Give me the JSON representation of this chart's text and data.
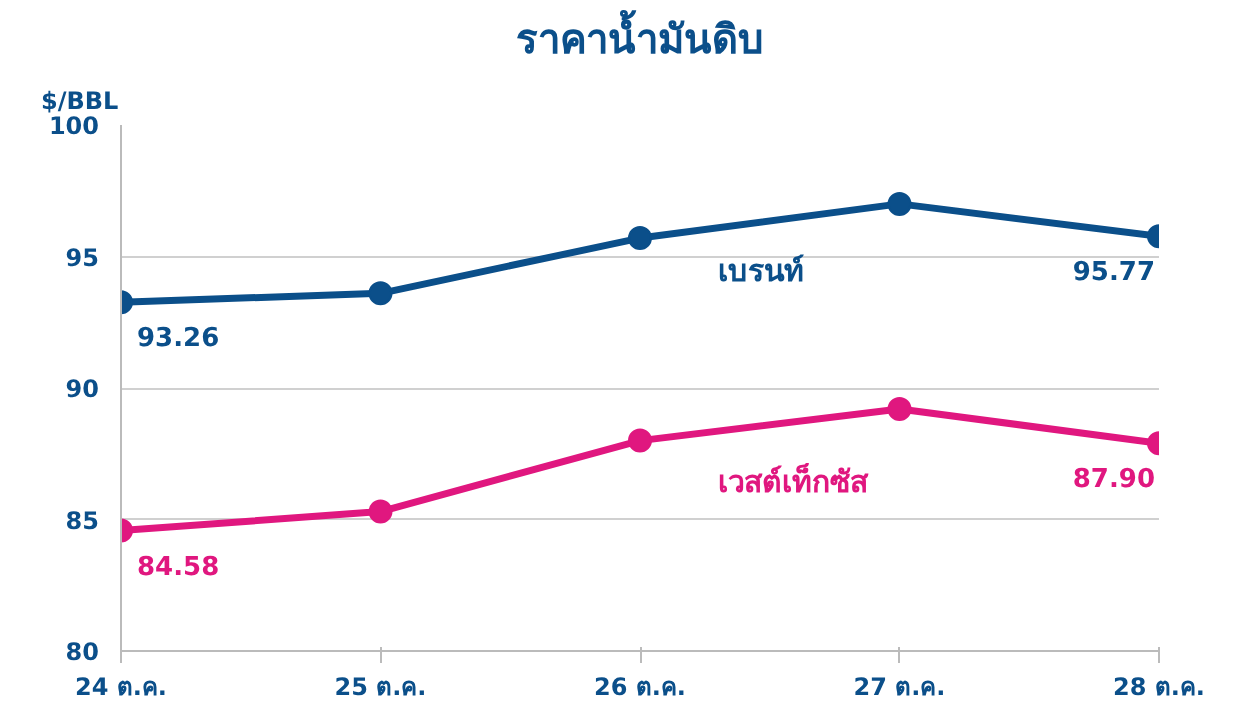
{
  "chart_data": {
    "type": "line",
    "title": "ราคาน้ำมันดิบ",
    "ylabel": "$/BBL",
    "categories": [
      "24 ต.ค.",
      "25 ต.ค.",
      "26 ต.ค.",
      "27 ต.ค.",
      "28 ต.ค."
    ],
    "series": [
      {
        "name": "เบรนท์",
        "color": "#0b4f8a",
        "values": [
          93.26,
          93.6,
          95.7,
          97.0,
          95.77
        ],
        "value_labels": [
          "93.26",
          null,
          null,
          null,
          "95.77"
        ]
      },
      {
        "name": "เวสต์เท็กซัส",
        "color": "#e0177f",
        "values": [
          84.58,
          85.3,
          88.0,
          89.2,
          87.9
        ],
        "value_labels": [
          "84.58",
          null,
          null,
          null,
          "87.90"
        ]
      }
    ],
    "ylim": [
      80,
      100
    ],
    "yticks": [
      80,
      85,
      90,
      95,
      100
    ],
    "grid": "y",
    "marker": "circle",
    "line_style": "solid"
  }
}
